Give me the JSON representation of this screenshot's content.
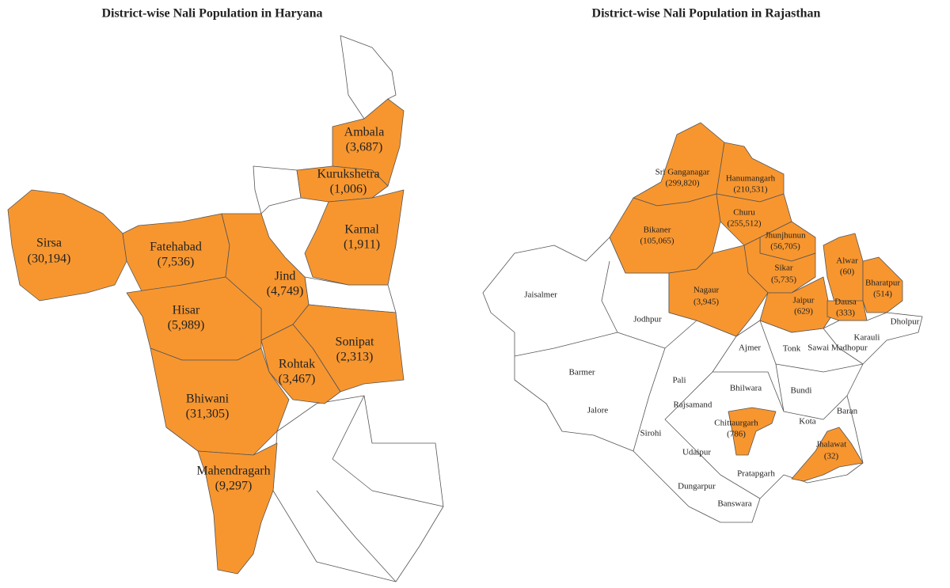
{
  "panels": [
    {
      "title": "District-wise Nali Population in Haryana",
      "districts": [
        {
          "name": "Ambala",
          "population": "(3,687)"
        },
        {
          "name": "Kurukshetra",
          "population": "(1,006)"
        },
        {
          "name": "Karnal",
          "population": "(1,911)"
        },
        {
          "name": "Sirsa",
          "population": "(30,194)"
        },
        {
          "name": "Fatehabad",
          "population": "(7,536)"
        },
        {
          "name": "Jind",
          "population": "(4,749)"
        },
        {
          "name": "Hisar",
          "population": "(5,989)"
        },
        {
          "name": "Sonipat",
          "population": "(2,313)"
        },
        {
          "name": "Rohtak",
          "population": "(3,467)"
        },
        {
          "name": "Bhiwani",
          "population": "(31,305)"
        },
        {
          "name": "Mahendragarh",
          "population": "(9,297)"
        }
      ]
    },
    {
      "title": "District-wise Nali Population in Rajasthan",
      "districts": [
        {
          "name": "Sri Ganganagar",
          "population": "(299,820)"
        },
        {
          "name": "Hanumangarh",
          "population": "(210,531)"
        },
        {
          "name": "Bikaner",
          "population": "(105,065)"
        },
        {
          "name": "Churu",
          "population": "(255,512)"
        },
        {
          "name": "Jhunjhunun",
          "population": "(56,705)"
        },
        {
          "name": "Sikar",
          "population": "(5,735)"
        },
        {
          "name": "Nagaur",
          "population": "(3,945)"
        },
        {
          "name": "Jaipur",
          "population": "(629)"
        },
        {
          "name": "Alwar",
          "population": "(60)"
        },
        {
          "name": "Dausa",
          "population": "(333)"
        },
        {
          "name": "Bharatpur",
          "population": "(514)"
        },
        {
          "name": "Chittaurgarh",
          "population": "(786)"
        },
        {
          "name": "Jhalawat",
          "population": "(32)"
        }
      ],
      "other_districts": [
        "Jaisalmer",
        "Jodhpur",
        "Barmer",
        "Ajmer",
        "Tonk",
        "Sawai Madhopur",
        "Karauli",
        "Dholpur",
        "Pali",
        "Bhilwara",
        "Bundi",
        "Jalore",
        "Rajsamand",
        "Kota",
        "Baran",
        "Sirohi",
        "Udaipur",
        "Pratapgarh",
        "Dungarpur",
        "Banswara"
      ]
    }
  ]
}
